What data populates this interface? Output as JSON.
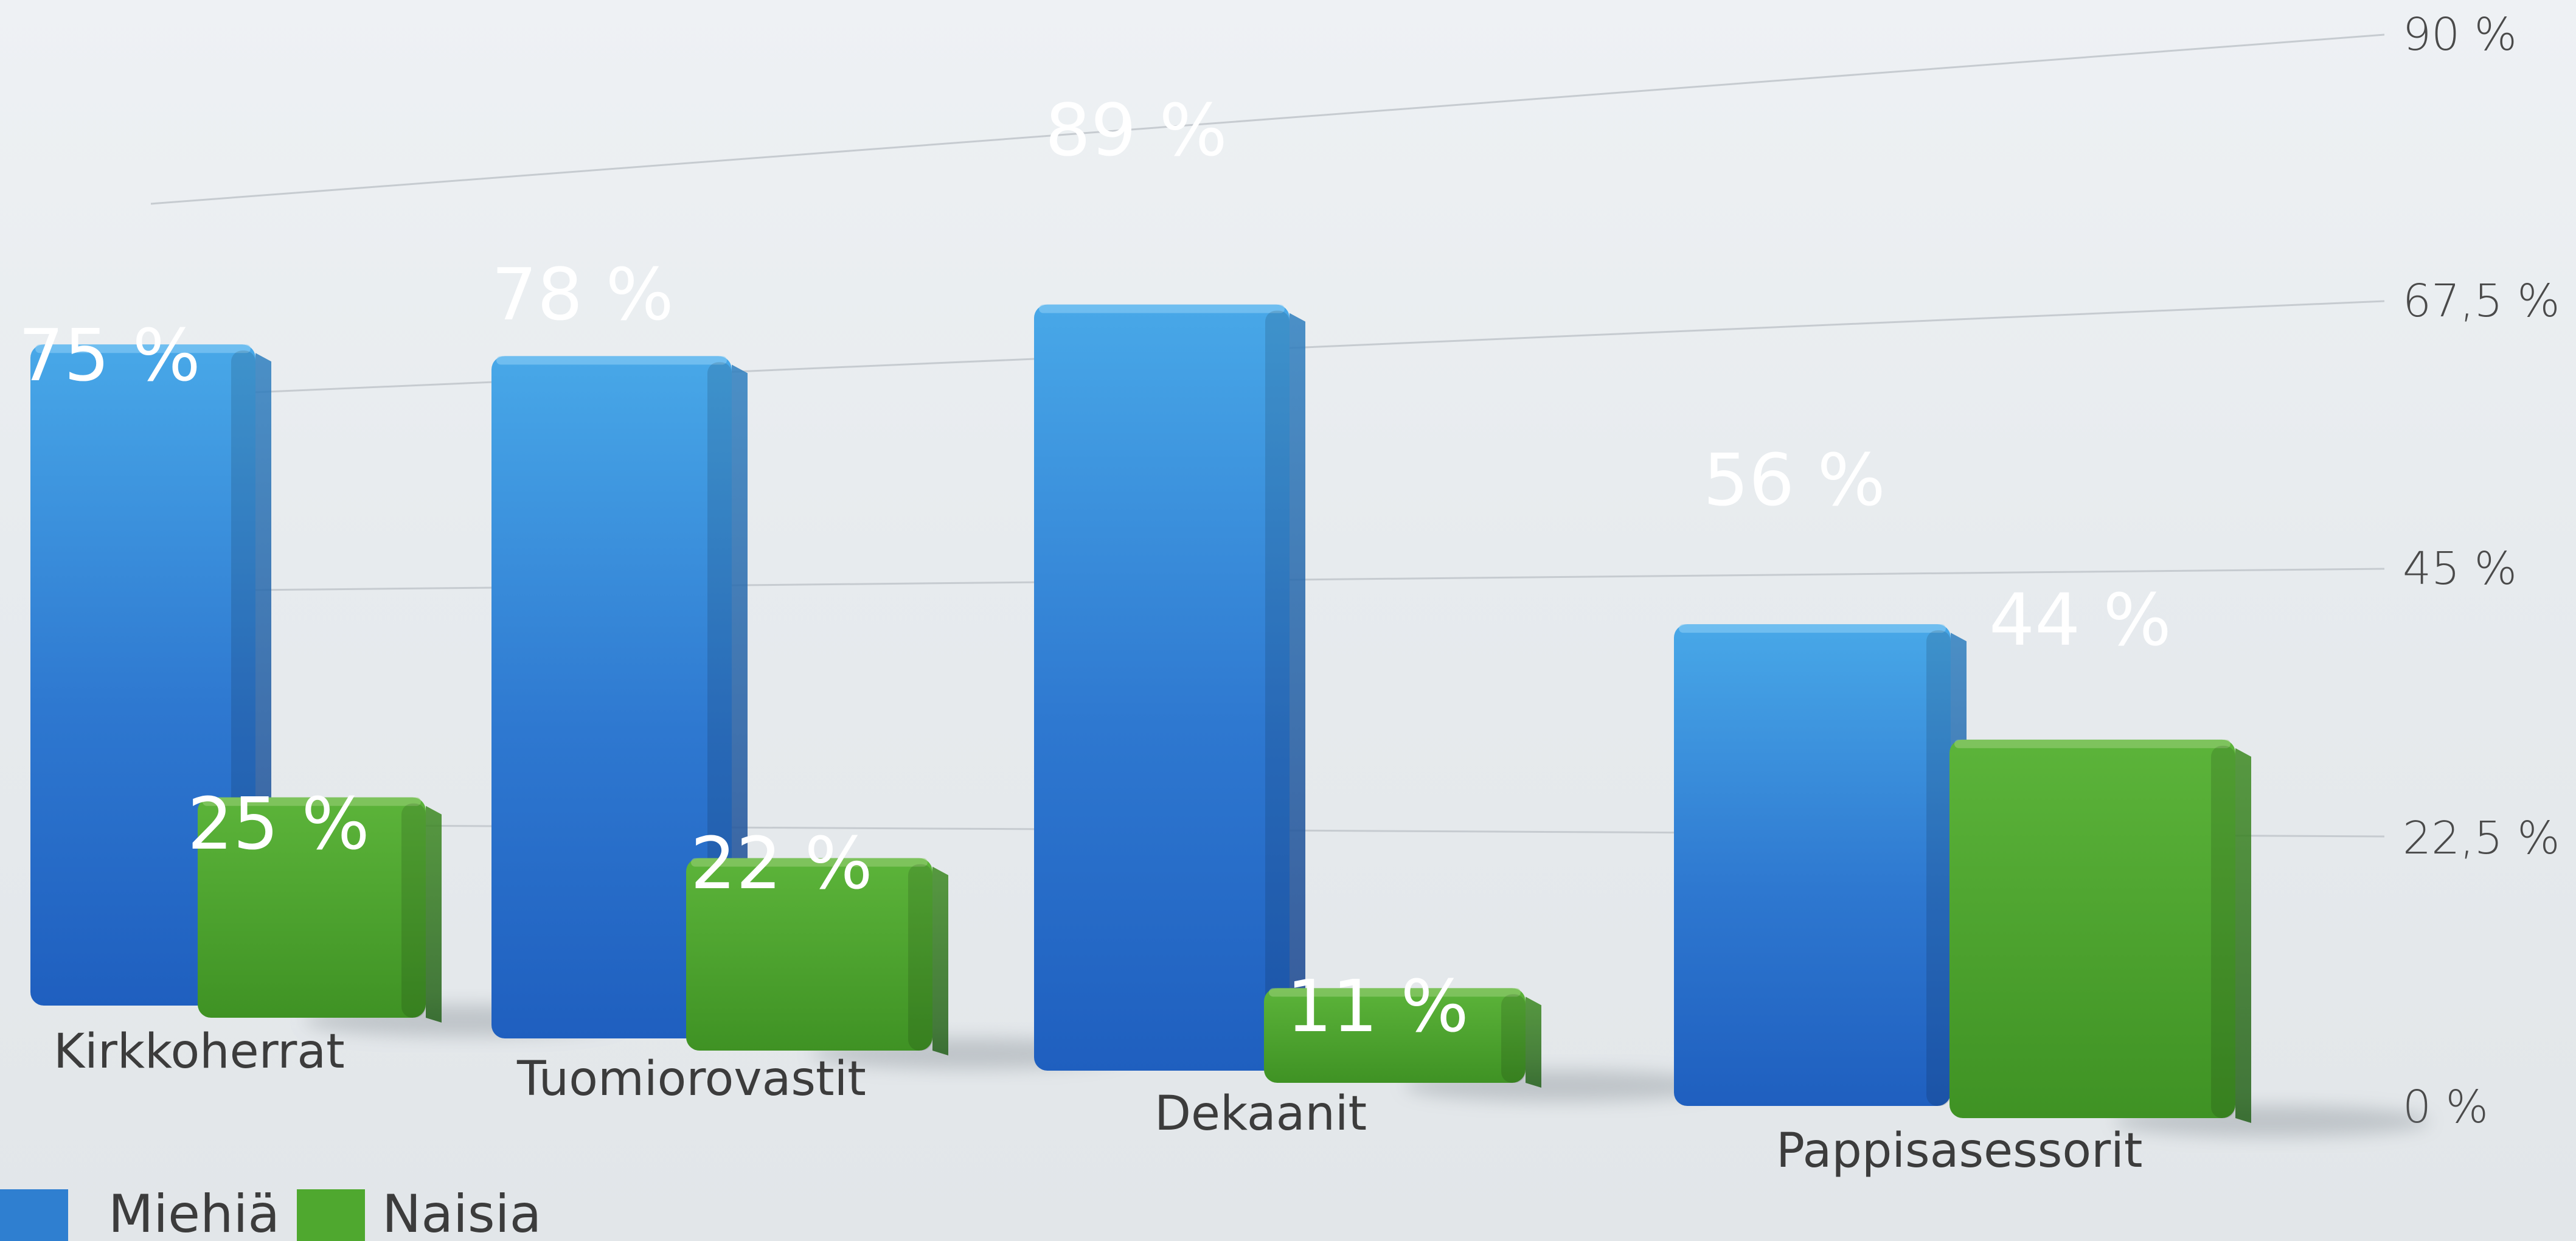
{
  "chart_data": {
    "type": "bar",
    "categories": [
      "Kirkkoherrat",
      "Tuomiorovastit",
      "Dekaanit",
      "Pappisasessorit"
    ],
    "series": [
      {
        "name": "Miehiä",
        "values": [
          75,
          78,
          89,
          56
        ],
        "labels": [
          "75 %",
          "78 %",
          "89 %",
          "56 %"
        ],
        "color": "#2f7fd0"
      },
      {
        "name": "Naisia",
        "values": [
          25,
          22,
          11,
          44
        ],
        "labels": [
          "25 %",
          "22 %",
          "11 %",
          "44 %"
        ],
        "color": "#4fa82f"
      }
    ],
    "ylim": [
      0,
      90
    ],
    "yticks": [
      0,
      22.5,
      45,
      67.5,
      90
    ],
    "ytick_labels": [
      "0 %",
      "22,5 %",
      "45 %",
      "67,5 %",
      "90 %"
    ],
    "grid": true,
    "legend_position": "bottom-left",
    "style": "3d-perspective"
  }
}
